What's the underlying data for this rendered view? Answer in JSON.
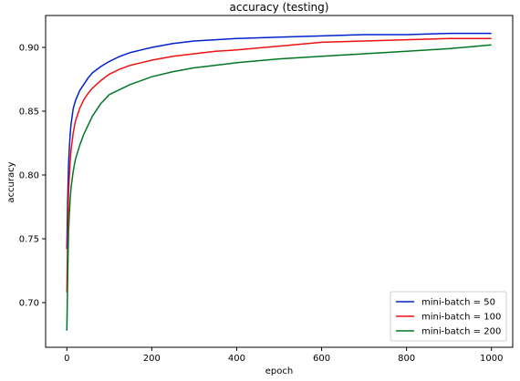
{
  "chart_data": {
    "type": "line",
    "title": "accuracy (testing)",
    "xlabel": "epoch",
    "ylabel": "accuracy",
    "xlim": [
      -50,
      1050
    ],
    "ylim": [
      0.665,
      0.925
    ],
    "x_ticks": [
      0,
      200,
      400,
      600,
      800,
      1000
    ],
    "y_ticks": [
      0.7,
      0.75,
      0.8,
      0.85,
      0.9
    ],
    "x_tick_labels": [
      "0",
      "200",
      "400",
      "600",
      "800",
      "1000"
    ],
    "y_tick_labels": [
      "0.70",
      "0.75",
      "0.80",
      "0.85",
      "0.90"
    ],
    "grid": false,
    "legend_position": "lower-right",
    "series": [
      {
        "name": "mini-batch = 50",
        "color": "#0022cc",
        "x": [
          0,
          2,
          4,
          6,
          8,
          10,
          15,
          20,
          30,
          40,
          50,
          60,
          80,
          100,
          125,
          150,
          175,
          200,
          250,
          300,
          350,
          400,
          500,
          600,
          700,
          800,
          900,
          1000
        ],
        "y": [
          0.742,
          0.782,
          0.808,
          0.822,
          0.833,
          0.84,
          0.852,
          0.858,
          0.866,
          0.871,
          0.876,
          0.88,
          0.885,
          0.889,
          0.893,
          0.896,
          0.898,
          0.9,
          0.903,
          0.905,
          0.906,
          0.907,
          0.908,
          0.909,
          0.91,
          0.91,
          0.911,
          0.911
        ]
      },
      {
        "name": "mini-batch = 100",
        "color": "#ee1111",
        "x": [
          0,
          2,
          4,
          6,
          8,
          10,
          15,
          20,
          30,
          40,
          50,
          60,
          80,
          100,
          125,
          150,
          175,
          200,
          250,
          300,
          350,
          400,
          500,
          600,
          700,
          800,
          900,
          1000
        ],
        "y": [
          0.708,
          0.752,
          0.785,
          0.8,
          0.811,
          0.82,
          0.833,
          0.842,
          0.852,
          0.859,
          0.864,
          0.868,
          0.874,
          0.879,
          0.883,
          0.886,
          0.888,
          0.89,
          0.893,
          0.895,
          0.897,
          0.898,
          0.901,
          0.904,
          0.905,
          0.906,
          0.907,
          0.907
        ]
      },
      {
        "name": "mini-batch = 200",
        "color": "#007722",
        "x": [
          0,
          2,
          4,
          6,
          8,
          10,
          15,
          20,
          30,
          40,
          50,
          60,
          80,
          100,
          125,
          150,
          175,
          200,
          250,
          300,
          350,
          400,
          500,
          600,
          700,
          800,
          900,
          1000
        ],
        "y": [
          0.678,
          0.72,
          0.755,
          0.77,
          0.782,
          0.79,
          0.803,
          0.812,
          0.823,
          0.832,
          0.839,
          0.846,
          0.856,
          0.863,
          0.867,
          0.871,
          0.874,
          0.877,
          0.881,
          0.884,
          0.886,
          0.888,
          0.891,
          0.893,
          0.895,
          0.897,
          0.899,
          0.902
        ]
      }
    ]
  }
}
